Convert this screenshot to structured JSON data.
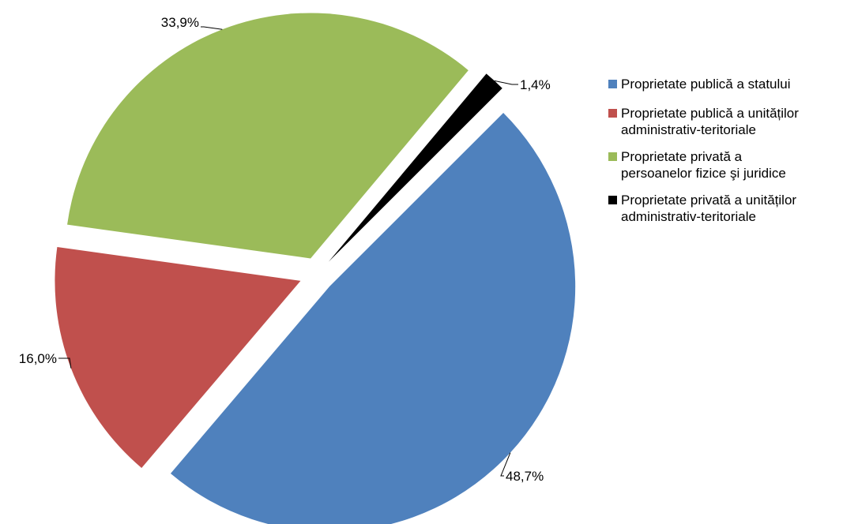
{
  "chart_data": {
    "type": "pie",
    "title": "",
    "legend_position": "right",
    "slices": [
      {
        "name": "Proprietate publică a statului",
        "value": 48.7,
        "label": "48,7%",
        "color": "#4F81BD"
      },
      {
        "name": "Proprietate publică a unităților administrativ-teritoriale",
        "value": 16.0,
        "label": "16,0%",
        "color": "#C0504D"
      },
      {
        "name": "Proprietate privată a persoanelor fizice şi juridice",
        "value": 33.9,
        "label": "33,9%",
        "color": "#9BBB59"
      },
      {
        "name": "Proprietate privată a unităților administrativ-teritoriale",
        "value": 1.4,
        "label": "1,4%",
        "color": "#000000"
      }
    ]
  },
  "legend": {
    "items": [
      {
        "line1": "Proprietate publică a statului",
        "line2": "",
        "color": "#4F81BD"
      },
      {
        "line1": "Proprietate publică a unităților",
        "line2": "administrativ-teritoriale",
        "color": "#C0504D"
      },
      {
        "line1": "Proprietate privată a",
        "line2": "persoanelor fizice şi juridice",
        "color": "#9BBB59"
      },
      {
        "line1": "Proprietate privată a unităților",
        "line2": "administrativ-teritoriale",
        "color": "#000000"
      }
    ]
  }
}
